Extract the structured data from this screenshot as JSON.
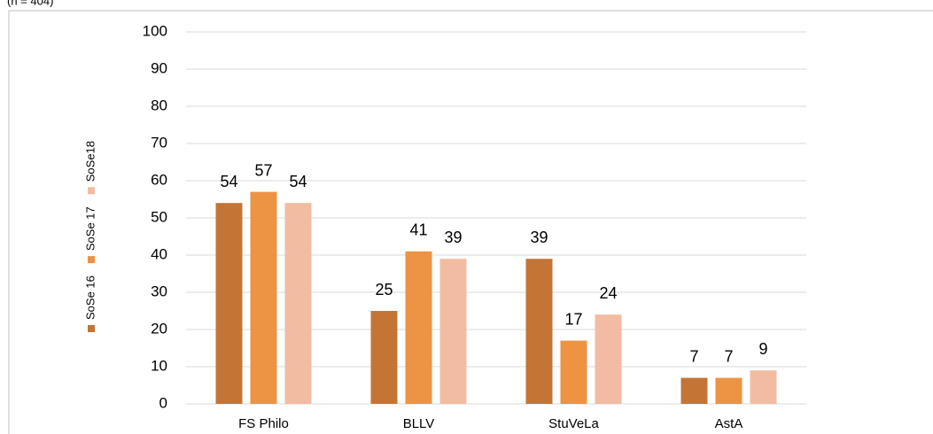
{
  "chart_data": {
    "type": "bar",
    "subtitle": "(n = 404)",
    "categories": [
      "FS Philo",
      "BLLV",
      "StuVeLa",
      "AstA"
    ],
    "series": [
      {
        "name": "SoSe 16",
        "color": "#c47535",
        "values": [
          54,
          25,
          39,
          7
        ]
      },
      {
        "name": "SoSe 17",
        "color": "#ed9344",
        "values": [
          57,
          41,
          17,
          7
        ]
      },
      {
        "name": "SoSe18",
        "color": "#f2bca2",
        "values": [
          54,
          39,
          24,
          9
        ]
      }
    ],
    "ylim": [
      0,
      100
    ],
    "yticks": [
      0,
      10,
      20,
      30,
      40,
      50,
      60,
      70,
      80,
      90,
      100
    ],
    "grid": true,
    "legend": "left"
  }
}
